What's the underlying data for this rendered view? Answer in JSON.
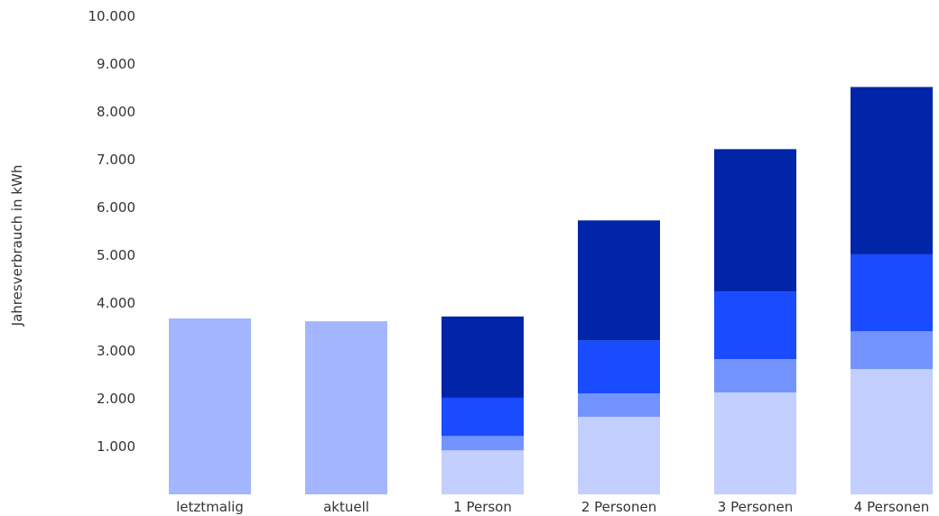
{
  "chart_data": {
    "type": "bar",
    "stacked": true,
    "title": "",
    "xlabel": "",
    "ylabel": "Jahresverbrauch in kWh",
    "ylim": [
      0,
      10000
    ],
    "yticks": [
      1000,
      2000,
      3000,
      4000,
      5000,
      6000,
      7000,
      8000,
      9000,
      10000
    ],
    "ytick_labels": [
      "1.000",
      "2.000",
      "3.000",
      "4.000",
      "5.000",
      "6.000",
      "7.000",
      "8.000",
      "9.000",
      "10.000"
    ],
    "grid": false,
    "legend": "none",
    "categories": [
      "letztmalig",
      "aktuell",
      "1 Person",
      "2 Personen",
      "3 Personen",
      "4 Personen"
    ],
    "series": [
      {
        "color": "#a3b6ff",
        "values": [
          3680,
          3620,
          0,
          0,
          0,
          0
        ]
      },
      {
        "color": "#c2cfff",
        "values": [
          0,
          0,
          920,
          1620,
          2130,
          2620
        ]
      },
      {
        "color": "#7394ff",
        "values": [
          0,
          0,
          300,
          490,
          700,
          790
        ]
      },
      {
        "color": "#1a4bff",
        "values": [
          0,
          0,
          800,
          1110,
          1410,
          1610
        ]
      },
      {
        "color": "#0025a8",
        "values": [
          0,
          0,
          1700,
          2510,
          2980,
          3500
        ]
      }
    ]
  }
}
